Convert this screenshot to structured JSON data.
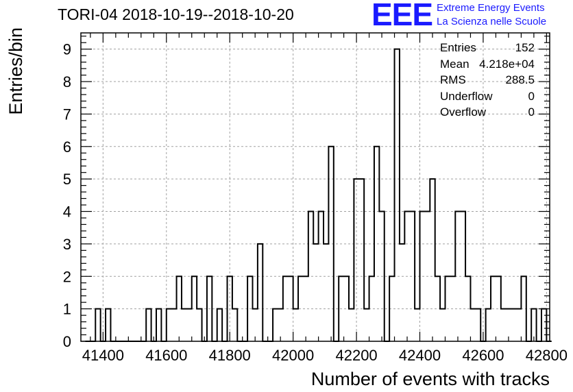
{
  "chart_data": {
    "type": "bar",
    "title": "TORI-04 2018-10-19--2018-10-20",
    "xlabel": "Number of events with tracks",
    "ylabel": "Entries/bin",
    "xlim": [
      41330,
      42810
    ],
    "ylim": [
      0,
      9.5
    ],
    "bin_width": 16,
    "x_ticks": [
      41400,
      41600,
      41800,
      42000,
      42200,
      42400,
      42600,
      42800
    ],
    "y_ticks": [
      0,
      1,
      2,
      3,
      4,
      5,
      6,
      7,
      8,
      9
    ],
    "grid": true,
    "bins": [
      {
        "x": 41376,
        "y": 1
      },
      {
        "x": 41408,
        "y": 1
      },
      {
        "x": 41536,
        "y": 1
      },
      {
        "x": 41568,
        "y": 1
      },
      {
        "x": 41600,
        "y": 1
      },
      {
        "x": 41616,
        "y": 1
      },
      {
        "x": 41632,
        "y": 2
      },
      {
        "x": 41648,
        "y": 1
      },
      {
        "x": 41664,
        "y": 1
      },
      {
        "x": 41680,
        "y": 2
      },
      {
        "x": 41696,
        "y": 1
      },
      {
        "x": 41728,
        "y": 2
      },
      {
        "x": 41760,
        "y": 1
      },
      {
        "x": 41792,
        "y": 2
      },
      {
        "x": 41808,
        "y": 1
      },
      {
        "x": 41856,
        "y": 2
      },
      {
        "x": 41872,
        "y": 1
      },
      {
        "x": 41888,
        "y": 3
      },
      {
        "x": 41936,
        "y": 1
      },
      {
        "x": 41952,
        "y": 1
      },
      {
        "x": 41968,
        "y": 2
      },
      {
        "x": 41984,
        "y": 2
      },
      {
        "x": 42000,
        "y": 1
      },
      {
        "x": 42016,
        "y": 2
      },
      {
        "x": 42032,
        "y": 2
      },
      {
        "x": 42048,
        "y": 4
      },
      {
        "x": 42064,
        "y": 3
      },
      {
        "x": 42080,
        "y": 4
      },
      {
        "x": 42096,
        "y": 3
      },
      {
        "x": 42112,
        "y": 6
      },
      {
        "x": 42144,
        "y": 2
      },
      {
        "x": 42160,
        "y": 2
      },
      {
        "x": 42176,
        "y": 1
      },
      {
        "x": 42192,
        "y": 5
      },
      {
        "x": 42208,
        "y": 5
      },
      {
        "x": 42224,
        "y": 1
      },
      {
        "x": 42240,
        "y": 2
      },
      {
        "x": 42256,
        "y": 6
      },
      {
        "x": 42272,
        "y": 4
      },
      {
        "x": 42304,
        "y": 2
      },
      {
        "x": 42320,
        "y": 9
      },
      {
        "x": 42336,
        "y": 3
      },
      {
        "x": 42352,
        "y": 4
      },
      {
        "x": 42368,
        "y": 4
      },
      {
        "x": 42384,
        "y": 1
      },
      {
        "x": 42400,
        "y": 4
      },
      {
        "x": 42416,
        "y": 4
      },
      {
        "x": 42432,
        "y": 5
      },
      {
        "x": 42448,
        "y": 2
      },
      {
        "x": 42464,
        "y": 1
      },
      {
        "x": 42480,
        "y": 2
      },
      {
        "x": 42496,
        "y": 2
      },
      {
        "x": 42512,
        "y": 4
      },
      {
        "x": 42528,
        "y": 4
      },
      {
        "x": 42544,
        "y": 2
      },
      {
        "x": 42560,
        "y": 1
      },
      {
        "x": 42576,
        "y": 1
      },
      {
        "x": 42608,
        "y": 1
      },
      {
        "x": 42624,
        "y": 2
      },
      {
        "x": 42640,
        "y": 2
      },
      {
        "x": 42656,
        "y": 1
      },
      {
        "x": 42672,
        "y": 1
      },
      {
        "x": 42688,
        "y": 1
      },
      {
        "x": 42704,
        "y": 1
      },
      {
        "x": 42720,
        "y": 2
      },
      {
        "x": 42736,
        "y": 0
      },
      {
        "x": 42752,
        "y": 1
      },
      {
        "x": 42784,
        "y": 1
      }
    ],
    "stats": [
      {
        "label": "Entries",
        "value": "152"
      },
      {
        "label": "Mean",
        "value": "4.218e+04"
      },
      {
        "label": "RMS",
        "value": "288.5"
      },
      {
        "label": "Underflow",
        "value": "0"
      },
      {
        "label": "Overflow",
        "value": "0"
      }
    ],
    "line_color": "#000000",
    "grid_color": "#a0a0a0"
  },
  "logo": {
    "mark": "EEE",
    "line1": "Extreme Energy Events",
    "line2": "La Scienza nelle Scuole",
    "color": "#1a1aff"
  }
}
